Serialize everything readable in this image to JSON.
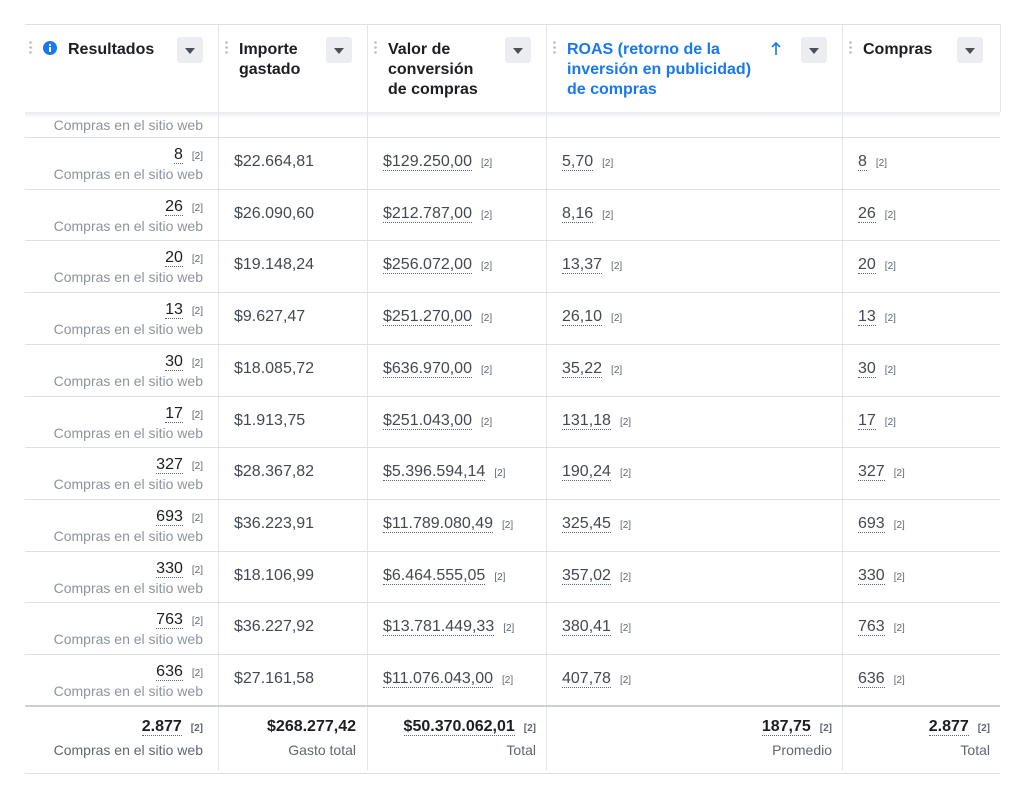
{
  "header": {
    "columns": [
      {
        "label": "Resultados"
      },
      {
        "label": "Importe gastado"
      },
      {
        "label": "Valor de conversión de compras"
      },
      {
        "label": "ROAS (retorno de la inversión en publicidad) de compras",
        "sorted": "asc"
      },
      {
        "label": "Compras"
      }
    ]
  },
  "footnote_marker": "[2]",
  "partial_row": {
    "result_type": "Compras en el sitio web"
  },
  "rows": [
    {
      "results": "8",
      "result_type": "Compras en el sitio web",
      "spent": "$22.664,81",
      "conversion_value": "$129.250,00",
      "roas": "5,70",
      "purchases": "8"
    },
    {
      "results": "26",
      "result_type": "Compras en el sitio web",
      "spent": "$26.090,60",
      "conversion_value": "$212.787,00",
      "roas": "8,16",
      "purchases": "26"
    },
    {
      "results": "20",
      "result_type": "Compras en el sitio web",
      "spent": "$19.148,24",
      "conversion_value": "$256.072,00",
      "roas": "13,37",
      "purchases": "20"
    },
    {
      "results": "13",
      "result_type": "Compras en el sitio web",
      "spent": "$9.627,47",
      "conversion_value": "$251.270,00",
      "roas": "26,10",
      "purchases": "13"
    },
    {
      "results": "30",
      "result_type": "Compras en el sitio web",
      "spent": "$18.085,72",
      "conversion_value": "$636.970,00",
      "roas": "35,22",
      "purchases": "30"
    },
    {
      "results": "17",
      "result_type": "Compras en el sitio web",
      "spent": "$1.913,75",
      "conversion_value": "$251.043,00",
      "roas": "131,18",
      "purchases": "17"
    },
    {
      "results": "327",
      "result_type": "Compras en el sitio web",
      "spent": "$28.367,82",
      "conversion_value": "$5.396.594,14",
      "roas": "190,24",
      "purchases": "327"
    },
    {
      "results": "693",
      "result_type": "Compras en el sitio web",
      "spent": "$36.223,91",
      "conversion_value": "$11.789.080,49",
      "roas": "325,45",
      "purchases": "693"
    },
    {
      "results": "330",
      "result_type": "Compras en el sitio web",
      "spent": "$18.106,99",
      "conversion_value": "$6.464.555,05",
      "roas": "357,02",
      "purchases": "330"
    },
    {
      "results": "763",
      "result_type": "Compras en el sitio web",
      "spent": "$36.227,92",
      "conversion_value": "$13.781.449,33",
      "roas": "380,41",
      "purchases": "763"
    },
    {
      "results": "636",
      "result_type": "Compras en el sitio web",
      "spent": "$27.161,58",
      "conversion_value": "$11.076.043,00",
      "roas": "407,78",
      "purchases": "636"
    }
  ],
  "totals": {
    "results": "2.877",
    "result_type": "Compras en el sitio web",
    "spent": "$268.277,42",
    "spent_label": "Gasto total",
    "conversion_value": "$50.370.062,01",
    "conversion_value_label": "Total",
    "roas": "187,75",
    "roas_label": "Promedio",
    "purchases": "2.877",
    "purchases_label": "Total"
  }
}
